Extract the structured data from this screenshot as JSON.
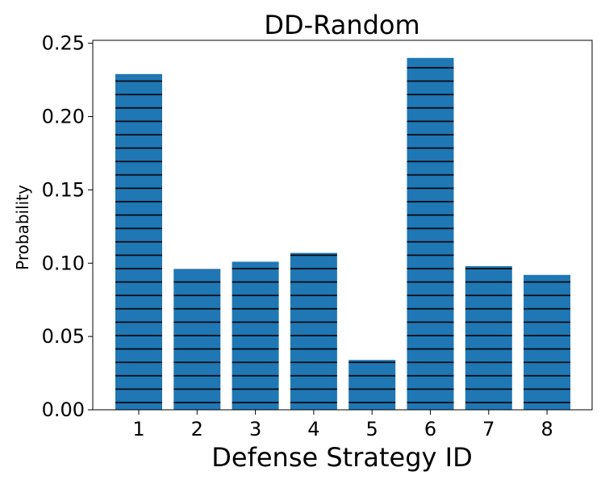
{
  "chart_data": {
    "type": "bar",
    "title": "DD-Random",
    "xlabel": "Defense Strategy ID",
    "ylabel": "Probability",
    "categories": [
      "1",
      "2",
      "3",
      "4",
      "5",
      "6",
      "7",
      "8"
    ],
    "values": [
      0.229,
      0.096,
      0.101,
      0.107,
      0.034,
      0.24,
      0.098,
      0.092
    ],
    "ylim": [
      0,
      0.252
    ],
    "yticks": [
      "0.00",
      "0.05",
      "0.10",
      "0.15",
      "0.20",
      "0.25"
    ],
    "bar_color": "#1f77b4",
    "hatch": "horizontal-lines",
    "grid": false,
    "legend": "none"
  }
}
